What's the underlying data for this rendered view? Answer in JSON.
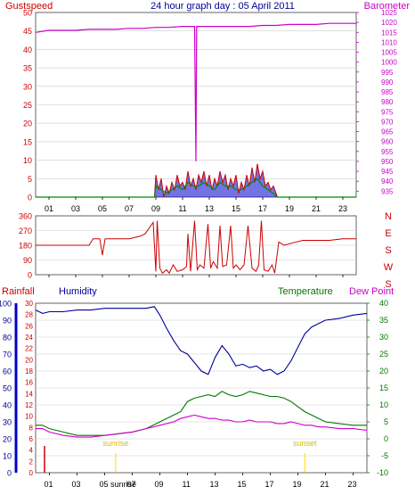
{
  "header": {
    "title": "24 hour graph day : 05 April 2011",
    "left_label": "Gustspeed",
    "right_label": "Barometer"
  },
  "x_ticks": [
    "01",
    "03",
    "05",
    "07",
    "09",
    "11",
    "13",
    "15",
    "17",
    "19",
    "21",
    "23"
  ],
  "x_ticks_bottom": [
    "01",
    "03",
    "05 sunrise",
    "07",
    "09",
    "11",
    "13",
    "15",
    "17",
    "19",
    "21",
    "23"
  ],
  "colors": {
    "gust": "#cc0000",
    "wind_avg": "#008800",
    "wind_fill": "#0000cc",
    "barometer": "#cc00cc",
    "direction": "#cc0000",
    "humidity": "#000099",
    "temperature": "#007700",
    "dewpoint": "#cc00cc",
    "title": "#000099",
    "grid": "#cccccc",
    "sun_marker": "#ffdd00"
  },
  "chart_data": [
    {
      "type": "line",
      "name": "wind",
      "ylabel": "Gustspeed",
      "y2label": "Barometer",
      "ylim": [
        0,
        50
      ],
      "yticks": [
        0,
        5,
        10,
        15,
        20,
        25,
        30,
        35,
        40,
        45,
        50
      ],
      "y2lim": [
        932,
        1025
      ],
      "y2ticks": [
        935,
        940,
        945,
        950,
        955,
        960,
        965,
        970,
        975,
        980,
        985,
        990,
        995,
        1000,
        1005,
        1010,
        1015,
        1020,
        1025
      ],
      "xlim": [
        0,
        24
      ],
      "grid": true,
      "series": [
        {
          "name": "Gustspeed",
          "x": [
            0,
            8.9,
            9.0,
            9.2,
            9.4,
            9.6,
            9.8,
            10.0,
            10.2,
            10.4,
            10.6,
            10.8,
            11.0,
            11.2,
            11.4,
            11.6,
            11.8,
            12.0,
            12.2,
            12.4,
            12.6,
            12.8,
            13.0,
            13.2,
            13.4,
            13.6,
            13.8,
            14.0,
            14.2,
            14.4,
            14.6,
            14.8,
            15.0,
            15.2,
            15.4,
            15.6,
            15.8,
            16.0,
            16.2,
            16.4,
            16.6,
            16.8,
            17.0,
            17.2,
            17.4,
            17.6,
            17.8,
            18.0,
            18.1,
            24
          ],
          "values": [
            0,
            0,
            6,
            2,
            5,
            0,
            3,
            1,
            4,
            2,
            6,
            3,
            4,
            2,
            7,
            3,
            5,
            2,
            6,
            4,
            7,
            3,
            6,
            2,
            5,
            3,
            7,
            4,
            6,
            2,
            5,
            3,
            6,
            1,
            4,
            2,
            6,
            3,
            8,
            4,
            9,
            5,
            7,
            3,
            4,
            2,
            3,
            1,
            0,
            0
          ]
        },
        {
          "name": "Wind average",
          "x": [
            0,
            8.9,
            9.0,
            9.4,
            9.8,
            10.2,
            10.6,
            11.0,
            11.4,
            11.8,
            12.2,
            12.6,
            13.0,
            13.4,
            13.8,
            14.2,
            14.6,
            15.0,
            15.4,
            15.8,
            16.2,
            16.6,
            17.0,
            17.4,
            17.8,
            18.1,
            24
          ],
          "values": [
            0,
            0,
            3,
            2,
            1,
            2,
            3,
            2,
            4,
            3,
            3,
            4,
            3,
            2,
            4,
            3,
            3,
            2,
            2,
            3,
            4,
            5,
            3,
            2,
            1,
            0,
            0
          ]
        },
        {
          "name": "Barometer",
          "x": [
            0,
            1,
            2,
            3,
            4,
            5,
            6,
            7,
            8,
            9,
            10,
            11,
            11.9,
            12.0,
            12.05,
            12.1,
            12.2,
            13,
            14,
            15,
            16,
            17,
            18,
            19,
            20,
            21,
            22,
            23,
            24
          ],
          "values": [
            1015,
            1016,
            1016,
            1016,
            1016.5,
            1016.5,
            1016.5,
            1017,
            1017,
            1017.5,
            1017.5,
            1018,
            1018,
            950,
            1018,
            1018,
            1018,
            1018,
            1018,
            1018,
            1018,
            1018.5,
            1018.5,
            1019,
            1019,
            1019,
            1019.5,
            1019.5,
            1019.5
          ]
        }
      ]
    },
    {
      "type": "line",
      "name": "wind direction",
      "ylim": [
        0,
        360
      ],
      "yticks": [
        0,
        90,
        180,
        270,
        360
      ],
      "right_labels": [
        "N",
        "E",
        "S",
        "W",
        "S"
      ],
      "xlim": [
        0,
        24
      ],
      "grid": true,
      "series": [
        {
          "name": "Direction",
          "x": [
            0,
            2,
            4,
            4.3,
            4.8,
            5,
            5.2,
            5.5,
            6,
            7,
            7.8,
            8.2,
            8.8,
            9.0,
            9.1,
            9.3,
            9.5,
            9.8,
            10,
            10.3,
            10.6,
            11,
            11.3,
            11.4,
            11.6,
            11.9,
            12.1,
            12.3,
            12.6,
            12.9,
            13.1,
            13.3,
            13.6,
            13.8,
            14,
            14.3,
            14.6,
            14.8,
            15,
            15.3,
            15.6,
            15.9,
            16.2,
            16.5,
            16.7,
            16.9,
            17.1,
            17.4,
            17.7,
            17.9,
            18.2,
            18.6,
            19.5,
            20,
            21,
            22,
            23,
            24
          ],
          "values": [
            180,
            180,
            180,
            220,
            220,
            120,
            220,
            220,
            220,
            220,
            235,
            250,
            320,
            20,
            330,
            40,
            10,
            30,
            10,
            60,
            20,
            30,
            50,
            250,
            20,
            330,
            30,
            60,
            40,
            310,
            40,
            80,
            40,
            300,
            50,
            60,
            300,
            40,
            60,
            30,
            60,
            300,
            40,
            20,
            60,
            330,
            30,
            20,
            60,
            10,
            200,
            180,
            200,
            210,
            210,
            210,
            220,
            220
          ]
        }
      ]
    },
    {
      "type": "line",
      "name": "temperature humidity",
      "ylabel": "Rainfall",
      "ylabel2": "Humidity",
      "y2label": "Temperature",
      "y2label2": "Dew Point",
      "ylim": [
        0,
        100
      ],
      "yticks": [
        0,
        10,
        20,
        30,
        40,
        50,
        60,
        70,
        80,
        90,
        100
      ],
      "rainlim": [
        0,
        30
      ],
      "rainticks": [
        0,
        2,
        4,
        6,
        8,
        10,
        12,
        14,
        16,
        18,
        20,
        22,
        24,
        26,
        28,
        30
      ],
      "y2lim": [
        -10,
        40
      ],
      "y2ticks": [
        -10,
        -5,
        0,
        5,
        10,
        15,
        20,
        25,
        30,
        35,
        40
      ],
      "xlim": [
        0,
        24
      ],
      "grid": true,
      "annotations": [
        "sunrise",
        "sunset"
      ],
      "annotation_x": [
        5.8,
        19.5
      ],
      "series": [
        {
          "name": "Humidity",
          "x": [
            0,
            0.5,
            1,
            2,
            3,
            4,
            5,
            6,
            7,
            8,
            8.6,
            9,
            9.5,
            10,
            10.5,
            11,
            11.5,
            12,
            12.5,
            13,
            13.5,
            14,
            14.5,
            15,
            15.5,
            16,
            16.5,
            17,
            17.5,
            18,
            18.5,
            19,
            19.5,
            20,
            20.5,
            21,
            22,
            23,
            24
          ],
          "values": [
            96,
            94,
            95,
            95,
            96,
            96,
            97,
            97,
            97,
            97,
            98,
            93,
            85,
            78,
            72,
            70,
            65,
            60,
            58,
            68,
            75,
            70,
            63,
            64,
            62,
            63,
            60,
            61,
            58,
            60,
            66,
            74,
            82,
            86,
            88,
            90,
            91,
            93,
            94
          ]
        },
        {
          "name": "Temperature",
          "x": [
            0,
            0.5,
            1,
            2,
            3,
            4,
            5,
            6,
            7,
            8,
            9,
            10,
            10.5,
            11,
            11.5,
            12,
            12.5,
            13,
            13.5,
            14,
            14.5,
            15,
            15.5,
            16,
            16.5,
            17,
            17.5,
            18,
            18.5,
            19,
            19.5,
            20,
            20.5,
            21,
            22,
            23,
            24
          ],
          "values": [
            4,
            4,
            3,
            2,
            1,
            1,
            1,
            1.5,
            2,
            3,
            5,
            7,
            8,
            11,
            12,
            12.5,
            13,
            12.5,
            14,
            13,
            12.5,
            13,
            14,
            13.5,
            13,
            12.5,
            12.5,
            12,
            11,
            9.5,
            8,
            7,
            6,
            5,
            4.5,
            4,
            4
          ]
        },
        {
          "name": "Dew Point",
          "x": [
            0,
            0.5,
            1,
            2,
            3,
            4,
            5,
            6,
            7,
            8,
            9,
            10,
            10.5,
            11,
            11.5,
            12,
            12.5,
            13,
            13.5,
            14,
            14.5,
            15,
            15.5,
            16,
            16.5,
            17,
            17.5,
            18,
            18.5,
            19,
            19.5,
            20,
            20.5,
            21,
            22,
            23,
            24
          ],
          "values": [
            3,
            3,
            2,
            1,
            0.5,
            0.5,
            1,
            1.5,
            2,
            3,
            4,
            5,
            6,
            6.5,
            7,
            6.5,
            6,
            6,
            5.5,
            5.5,
            5,
            5,
            5.5,
            5,
            5,
            5,
            4.5,
            4.5,
            5,
            4.5,
            4,
            4,
            3.5,
            3.5,
            3,
            3,
            2.5
          ]
        }
      ]
    }
  ]
}
